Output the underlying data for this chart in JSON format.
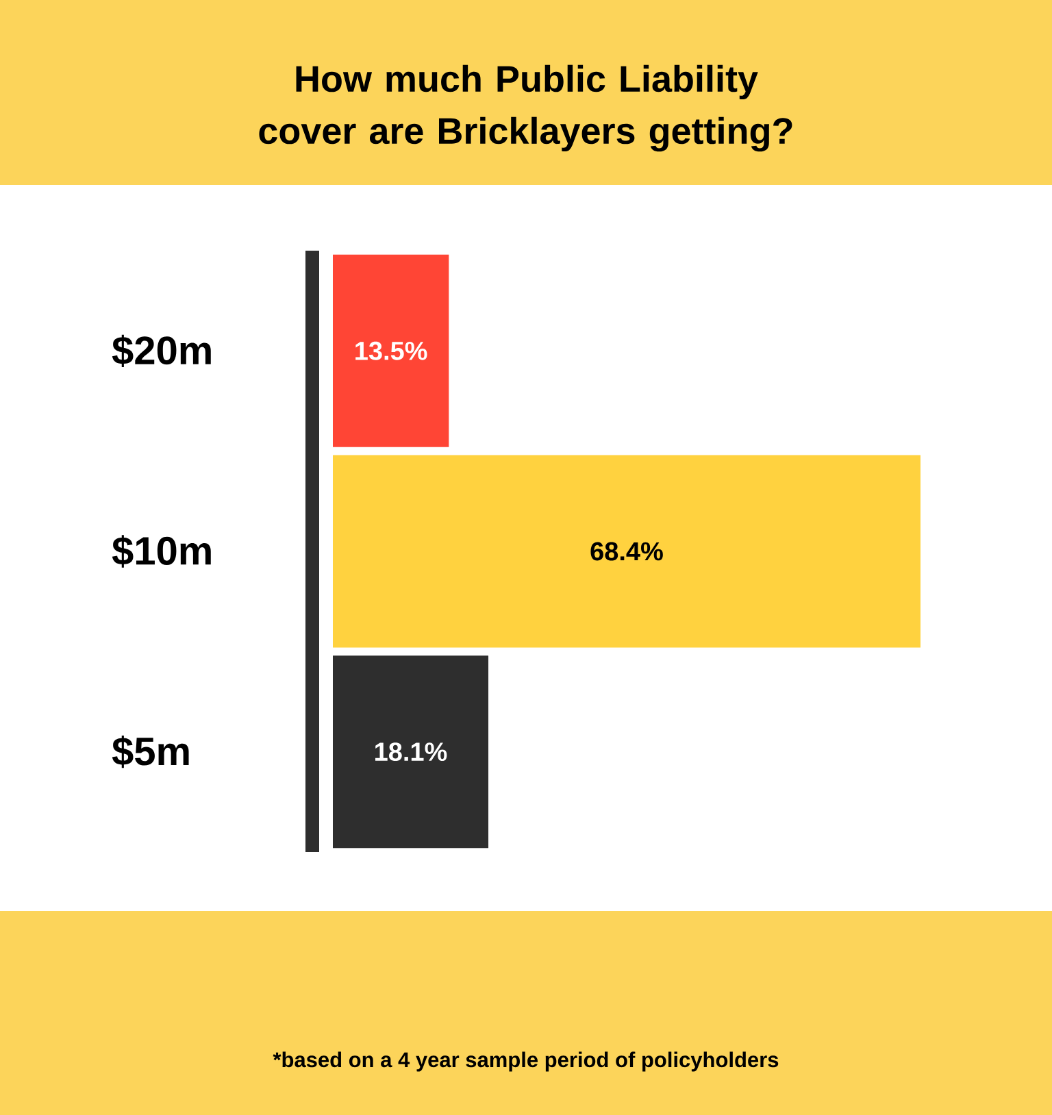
{
  "chart_data": {
    "type": "bar",
    "orientation": "horizontal",
    "title": "How much Public Liability cover are Bricklayers getting?",
    "categories": [
      "$20m",
      "$10m",
      "$5m"
    ],
    "values": [
      13.5,
      68.4,
      18.1
    ],
    "value_labels": [
      "13.5%",
      "68.4%",
      "18.1%"
    ],
    "colors": [
      "#ff4535",
      "#ffd23f",
      "#2e2e2e"
    ],
    "annotations": [
      "*based on a 4 year sample period of policyholders"
    ]
  }
}
